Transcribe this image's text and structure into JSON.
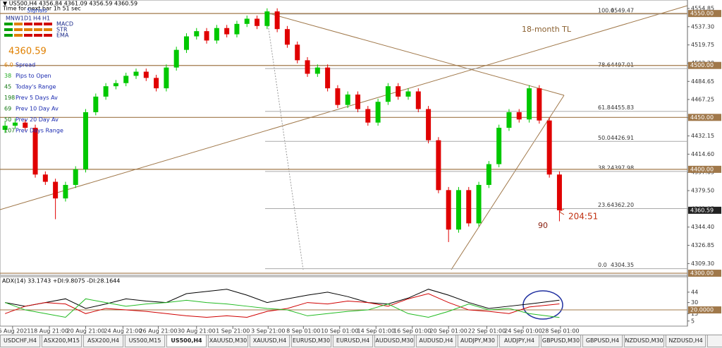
{
  "chart_data": {
    "type": "candlestick",
    "title": "▼ US500,H4 4356.84 4361.09 4356.59 4360.59",
    "subtitle": "Time for next bar 1h 51 sec",
    "signals": {
      "title": "Signals",
      "periods": [
        "MN",
        "W1",
        "D1",
        "H4",
        "H1"
      ],
      "rows": [
        "MACD",
        "STR",
        "EMA"
      ]
    },
    "big_price": "4360.59",
    "stats": [
      {
        "num": "6.0",
        "text": "Spread",
        "color": "#e08000"
      },
      {
        "num": "38",
        "text": "Pips to Open",
        "color": "#22aa22"
      },
      {
        "num": "45",
        "text": "Today's Range",
        "color": "#117711"
      },
      {
        "num": "198",
        "text": "Prev 5 Days Av",
        "color": "#117711"
      },
      {
        "num": "69",
        "text": "Prev 10 Day Av",
        "color": "#117711"
      },
      {
        "num": "50",
        "text": "Prev 20 Day Av",
        "color": "#117711"
      },
      {
        "num": "107",
        "text": "Prev Days Range",
        "color": "#117711"
      }
    ],
    "annotations": {
      "trendline": "18-month TL",
      "count": "90",
      "timer": "204:51"
    },
    "up_color": "#00c800",
    "down_color": "#e00000",
    "x": [
      0,
      1,
      2,
      3,
      4,
      5,
      6,
      7,
      8,
      9,
      10,
      11,
      12,
      13,
      14,
      15,
      16,
      17,
      18,
      19,
      20,
      21,
      22,
      23,
      24,
      25,
      26,
      27,
      28,
      29,
      30,
      31,
      32,
      33,
      34,
      35,
      36,
      37,
      38,
      39,
      40,
      41,
      42,
      43,
      44,
      45,
      46,
      47,
      48,
      49,
      50,
      51,
      52,
      53,
      54,
      55
    ],
    "open": [
      4438,
      4442,
      4445,
      4440,
      4395,
      4388,
      4372,
      4385,
      4400,
      4455,
      4470,
      4480,
      4483,
      4490,
      4494,
      4488,
      4478,
      4498,
      4515,
      4528,
      4533,
      4524,
      4536,
      4530,
      4540,
      4545,
      4538,
      4552,
      4535,
      4520,
      4505,
      4492,
      4498,
      4478,
      4462,
      4472,
      4458,
      4445,
      4465,
      4480,
      4470,
      4475,
      4458,
      4428,
      4380,
      4342,
      4380,
      4348,
      4385,
      4405,
      4440,
      4455,
      4448,
      4478,
      4447,
      4395
    ],
    "high": [
      4446,
      4449,
      4448,
      4443,
      4398,
      4391,
      4388,
      4403,
      4458,
      4473,
      4483,
      4486,
      4493,
      4497,
      4497,
      4491,
      4501,
      4518,
      4531,
      4536,
      4536,
      4539,
      4539,
      4543,
      4548,
      4548,
      4555,
      4555,
      4538,
      4523,
      4508,
      4501,
      4501,
      4481,
      4475,
      4475,
      4461,
      4468,
      4483,
      4483,
      4478,
      4478,
      4461,
      4431,
      4383,
      4383,
      4383,
      4388,
      4408,
      4443,
      4458,
      4458,
      4481,
      4481,
      4450,
      4398
    ],
    "low": [
      4435,
      4439,
      4437,
      4392,
      4385,
      4352,
      4369,
      4382,
      4397,
      4452,
      4467,
      4477,
      4480,
      4487,
      4485,
      4475,
      4475,
      4495,
      4512,
      4525,
      4521,
      4521,
      4527,
      4527,
      4537,
      4535,
      4535,
      4532,
      4517,
      4502,
      4489,
      4489,
      4475,
      4459,
      4459,
      4455,
      4442,
      4442,
      4462,
      4467,
      4467,
      4455,
      4425,
      4377,
      4330,
      4339,
      4345,
      4345,
      4382,
      4402,
      4437,
      4445,
      4445,
      4444,
      4392,
      4350
    ],
    "close": [
      4442,
      4445,
      4440,
      4395,
      4388,
      4372,
      4385,
      4400,
      4455,
      4470,
      4480,
      4483,
      4490,
      4494,
      4488,
      4478,
      4498,
      4515,
      4528,
      4533,
      4524,
      4536,
      4530,
      4540,
      4545,
      4538,
      4552,
      4535,
      4520,
      4505,
      4492,
      4498,
      4478,
      4462,
      4472,
      4458,
      4445,
      4465,
      4480,
      4470,
      4475,
      4458,
      4428,
      4380,
      4342,
      4380,
      4348,
      4385,
      4405,
      4440,
      4455,
      4448,
      4478,
      4447,
      4395,
      4360.59
    ],
    "xlim": [
      -0.5,
      67.7
    ],
    "xticks": [
      {
        "value": 0.75,
        "label": "16 Aug 2021"
      },
      {
        "value": 4.4,
        "label": "18 Aug 21:00"
      },
      {
        "value": 8.0,
        "label": "20 Aug 21:00"
      },
      {
        "value": 11.7,
        "label": "24 Aug 21:00"
      },
      {
        "value": 15.2,
        "label": "26 Aug 21:00"
      },
      {
        "value": 19.0,
        "label": "30 Aug 21:00"
      },
      {
        "value": 22.6,
        "label": "1 Sep 21:00"
      },
      {
        "value": 26.1,
        "label": "3 Sep 21:00"
      },
      {
        "value": 29.6,
        "label": "8 Sep 01:00"
      },
      {
        "value": 33.2,
        "label": "10 Sep 01:00"
      },
      {
        "value": 36.8,
        "label": "14 Sep 01:00"
      },
      {
        "value": 40.4,
        "label": "16 Sep 01:00"
      },
      {
        "value": 44.0,
        "label": "20 Sep 01:00"
      },
      {
        "value": 47.8,
        "label": "22 Sep 01:00"
      },
      {
        "value": 51.4,
        "label": "24 Sep 01:00"
      },
      {
        "value": 55.1,
        "label": "28 Sep 01:00"
      }
    ],
    "ylim": [
      4298,
      4563
    ],
    "yticks": [
      4554.85,
      {
        "value": 4537.3,
        "label": "4537.30"
      },
      4519.75,
      {
        "value": 4502.2,
        "label": "4502.20"
      },
      4484.65,
      4467.25,
      {
        "value": 4449.7,
        "label": "4449.70"
      },
      4432.15,
      {
        "value": 4414.6,
        "label": "4414.60"
      },
      4397.05,
      {
        "value": 4379.5,
        "label": "4379.50"
      },
      4361.95,
      {
        "value": 4344.4,
        "label": "4344.40"
      },
      4326.85,
      {
        "value": 4309.3,
        "label": "4309.30"
      }
    ],
    "levels": [
      {
        "value": 4550,
        "label": "4550.00"
      },
      {
        "value": 4500,
        "label": "4500.00"
      },
      {
        "value": 4450,
        "label": "4450.00"
      },
      {
        "value": 4400,
        "label": "4400.00"
      },
      {
        "value": 4300,
        "label": "4300.00"
      }
    ],
    "level_color": "#a0784a",
    "current_price": 4360.59,
    "fib": [
      {
        "ratio": {
          "value": 100,
          "label": "100.0"
        },
        "price": 4549.47
      },
      {
        "ratio": 78.6,
        "price": 4497.01
      },
      {
        "ratio": 61.8,
        "price": 4455.83
      },
      {
        "ratio": {
          "value": 50,
          "label": "50.0"
        },
        "price": 4426.91
      },
      {
        "ratio": 38.2,
        "price": 4397.98
      },
      {
        "ratio": 23.6,
        "price": {
          "value": 4362.2,
          "label": "4362.20"
        }
      },
      {
        "ratio": {
          "value": 0,
          "label": "0.0"
        },
        "price": 4304.35
      }
    ],
    "adx": {
      "title": "ADX(14) 33.1743 +DI:9.8075 -DI:28.1644",
      "ylim": [
        0,
        63
      ],
      "yticks": [
        44,
        30,
        15,
        5
      ],
      "level": {
        "value": 20,
        "label": "20.0000"
      },
      "x": [
        0,
        2,
        4,
        6,
        8,
        10,
        12,
        14,
        16,
        18,
        20,
        22,
        24,
        26,
        28,
        30,
        32,
        34,
        36,
        38,
        40,
        42,
        44,
        46,
        48,
        50,
        52,
        55
      ],
      "series": [
        {
          "color": "#000000",
          "values": [
            30,
            25,
            30,
            35,
            22,
            28,
            35,
            32,
            30,
            42,
            45,
            48,
            40,
            30,
            35,
            40,
            44,
            38,
            30,
            28,
            36,
            48,
            40,
            30,
            22,
            25,
            28,
            33.17
          ]
        },
        {
          "color": "#d00000",
          "values": [
            15,
            25,
            30,
            28,
            15,
            22,
            20,
            18,
            15,
            12,
            10,
            12,
            10,
            18,
            22,
            30,
            28,
            32,
            30,
            25,
            35,
            42,
            30,
            20,
            18,
            15,
            24,
            28.16
          ]
        },
        {
          "color": "#22bb22",
          "values": [
            30,
            20,
            15,
            10,
            35,
            30,
            25,
            28,
            30,
            33,
            30,
            28,
            25,
            22,
            20,
            12,
            15,
            18,
            20,
            28,
            15,
            10,
            18,
            28,
            20,
            22,
            15,
            9.81
          ]
        }
      ]
    }
  },
  "tabs": [
    "USDCHF,H4",
    "ASX200,M15",
    "ASX200,H4",
    "US500,M15",
    "US500,H4",
    "XAUUSD,M30",
    "XAUUSD,H4",
    "EURUSD,M30",
    "EURUSD,H4",
    "AUDUSD,M30",
    "AUDUSD,H4",
    "AUDJPY,M30",
    "AUDJPY,H4",
    "GBPUSD,M30",
    "GBPUSD,H4",
    "NZDUSD,M30",
    "NZDUSD,H4",
    "US("
  ],
  "active_tab": 4
}
